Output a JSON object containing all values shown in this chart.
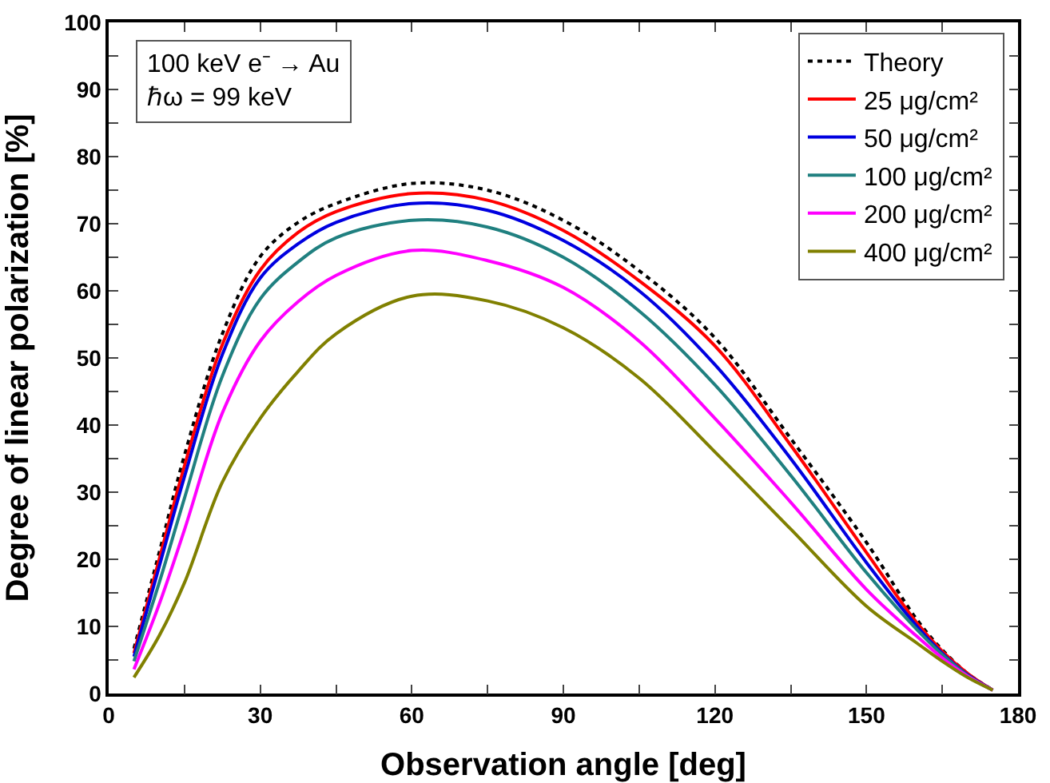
{
  "chart_data": {
    "type": "line",
    "xlabel": "Observation angle [deg]",
    "ylabel": "Degree of linear polarization [%]",
    "x": [
      5,
      10,
      15,
      22.5,
      30,
      37.5,
      45,
      60,
      75,
      90,
      105,
      120,
      135,
      150,
      160,
      165,
      170,
      175
    ],
    "xlim": [
      0,
      180
    ],
    "ylim": [
      0,
      100
    ],
    "xticks": [
      0,
      {
        "value": 15,
        "label": null
      },
      30,
      {
        "value": 45,
        "label": null
      },
      60,
      {
        "value": 75,
        "label": null
      },
      90,
      {
        "value": 105,
        "label": null
      },
      120,
      {
        "value": 135,
        "label": null
      },
      150,
      {
        "value": 165,
        "label": null
      },
      180
    ],
    "yticks": [
      0,
      {
        "value": 5,
        "label": null
      },
      10,
      {
        "value": 15,
        "label": null
      },
      20,
      {
        "value": 25,
        "label": null
      },
      30,
      {
        "value": 35,
        "label": null
      },
      40,
      {
        "value": 45,
        "label": null
      },
      50,
      {
        "value": 55,
        "label": null
      },
      60,
      {
        "value": 65,
        "label": null
      },
      70,
      {
        "value": 75,
        "label": null
      },
      80,
      {
        "value": 85,
        "label": null
      },
      90,
      {
        "value": 95,
        "label": null
      },
      100
    ],
    "grid": false,
    "legend": "top right",
    "marker": "none",
    "annotations": [
      "100 keV e⁻ → Au",
      "ℏω = 99 keV"
    ],
    "series": [
      {
        "name": "Theory",
        "color": "#000000",
        "line_style": "dotted",
        "values": [
          6.7,
          21,
          35.5,
          53.6,
          65.1,
          70.2,
          73,
          76,
          75,
          70.5,
          63,
          53,
          38,
          22.5,
          11,
          6.5,
          3,
          0.5
        ]
      },
      {
        "name": "25 μg/cm²",
        "color": "#ff0000",
        "line_style": "solid",
        "values": [
          6,
          20,
          33.9,
          52,
          63.1,
          68.7,
          71.8,
          74.5,
          73.5,
          69,
          61.5,
          51.8,
          37,
          21,
          10.5,
          6.3,
          3,
          0.5
        ]
      },
      {
        "name": "50 μg/cm²",
        "color": "#0000e0",
        "line_style": "solid",
        "values": [
          5.5,
          18.9,
          32.3,
          50.5,
          61.9,
          67,
          70.2,
          73,
          72,
          67.5,
          60,
          49,
          35,
          19.5,
          10,
          6,
          2.8,
          0.5
        ]
      },
      {
        "name": "100 μg/cm²",
        "color": "#208080",
        "line_style": "solid",
        "values": [
          4.8,
          16.5,
          29.1,
          47.3,
          58.8,
          64.3,
          67.9,
          70.5,
          69.5,
          65,
          57,
          46,
          32.5,
          18,
          9.5,
          5.8,
          2.7,
          0.5
        ]
      },
      {
        "name": "200 μg/cm²",
        "color": "#ff00ff",
        "line_style": "solid",
        "values": [
          3.6,
          13.3,
          24.4,
          41.8,
          52.5,
          58.4,
          62.3,
          66,
          64.5,
          60.5,
          52.5,
          41,
          28.5,
          15.5,
          8.5,
          5.3,
          2.6,
          0.5
        ]
      },
      {
        "name": "400 μg/cm²",
        "color": "#808000",
        "line_style": "solid",
        "values": [
          2.4,
          8.6,
          16.5,
          31.5,
          41,
          48,
          53.6,
          59.2,
          58.5,
          54.5,
          47,
          36,
          24.5,
          13,
          7.5,
          4.8,
          2.4,
          0.5
        ]
      }
    ]
  }
}
